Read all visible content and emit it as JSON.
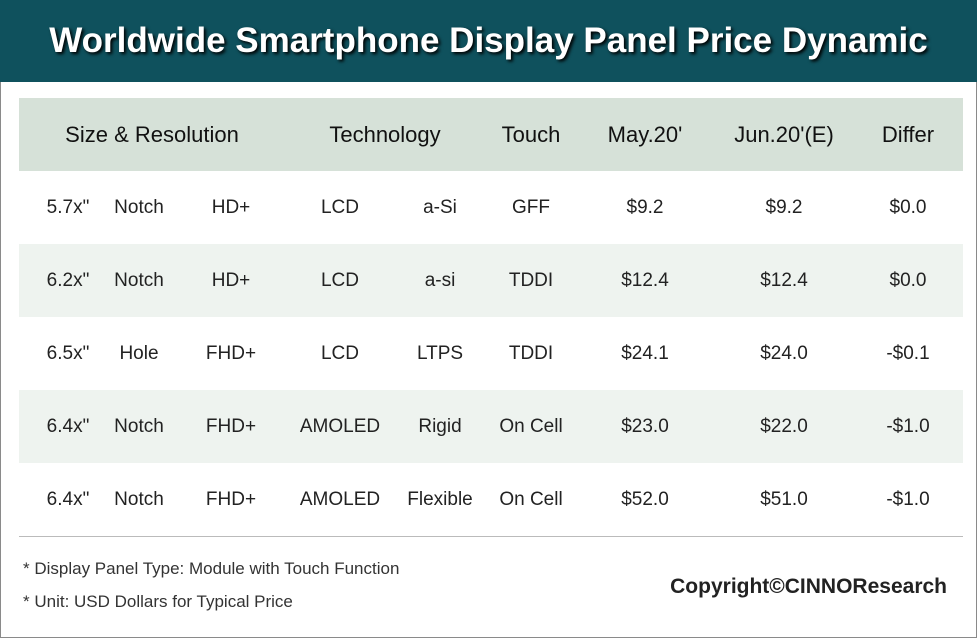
{
  "title": "Worldwide Smartphone Display Panel Price Dynamic",
  "chart_data": {
    "type": "table",
    "headers": [
      "Size & Resolution",
      "Technology",
      "Touch",
      "May.20'",
      "Jun.20'(E)",
      "Differ"
    ],
    "rows": [
      [
        "5.7x\"",
        "Notch",
        "HD+",
        "LCD",
        "a-Si",
        "GFF",
        "$9.2",
        "$9.2",
        "$0.0"
      ],
      [
        "6.2x\"",
        "Notch",
        "HD+",
        "LCD",
        "a-si",
        "TDDI",
        "$12.4",
        "$12.4",
        "$0.0"
      ],
      [
        "6.5x\"",
        "Hole",
        "FHD+",
        "LCD",
        "LTPS",
        "TDDI",
        "$24.1",
        "$24.0",
        "-$0.1"
      ],
      [
        "6.4x\"",
        "Notch",
        "FHD+",
        "AMOLED",
        "Rigid",
        "On Cell",
        "$23.0",
        "$22.0",
        "-$1.0"
      ],
      [
        "6.4x\"",
        "Notch",
        "FHD+",
        "AMOLED",
        "Flexible",
        "On Cell",
        "$52.0",
        "$51.0",
        "-$1.0"
      ]
    ]
  },
  "notes": [
    "* Display Panel Type:  Module with Touch Function",
    "* Unit:  USD Dollars for Typical Price"
  ],
  "copyright": "Copyright©CINNOResearch"
}
